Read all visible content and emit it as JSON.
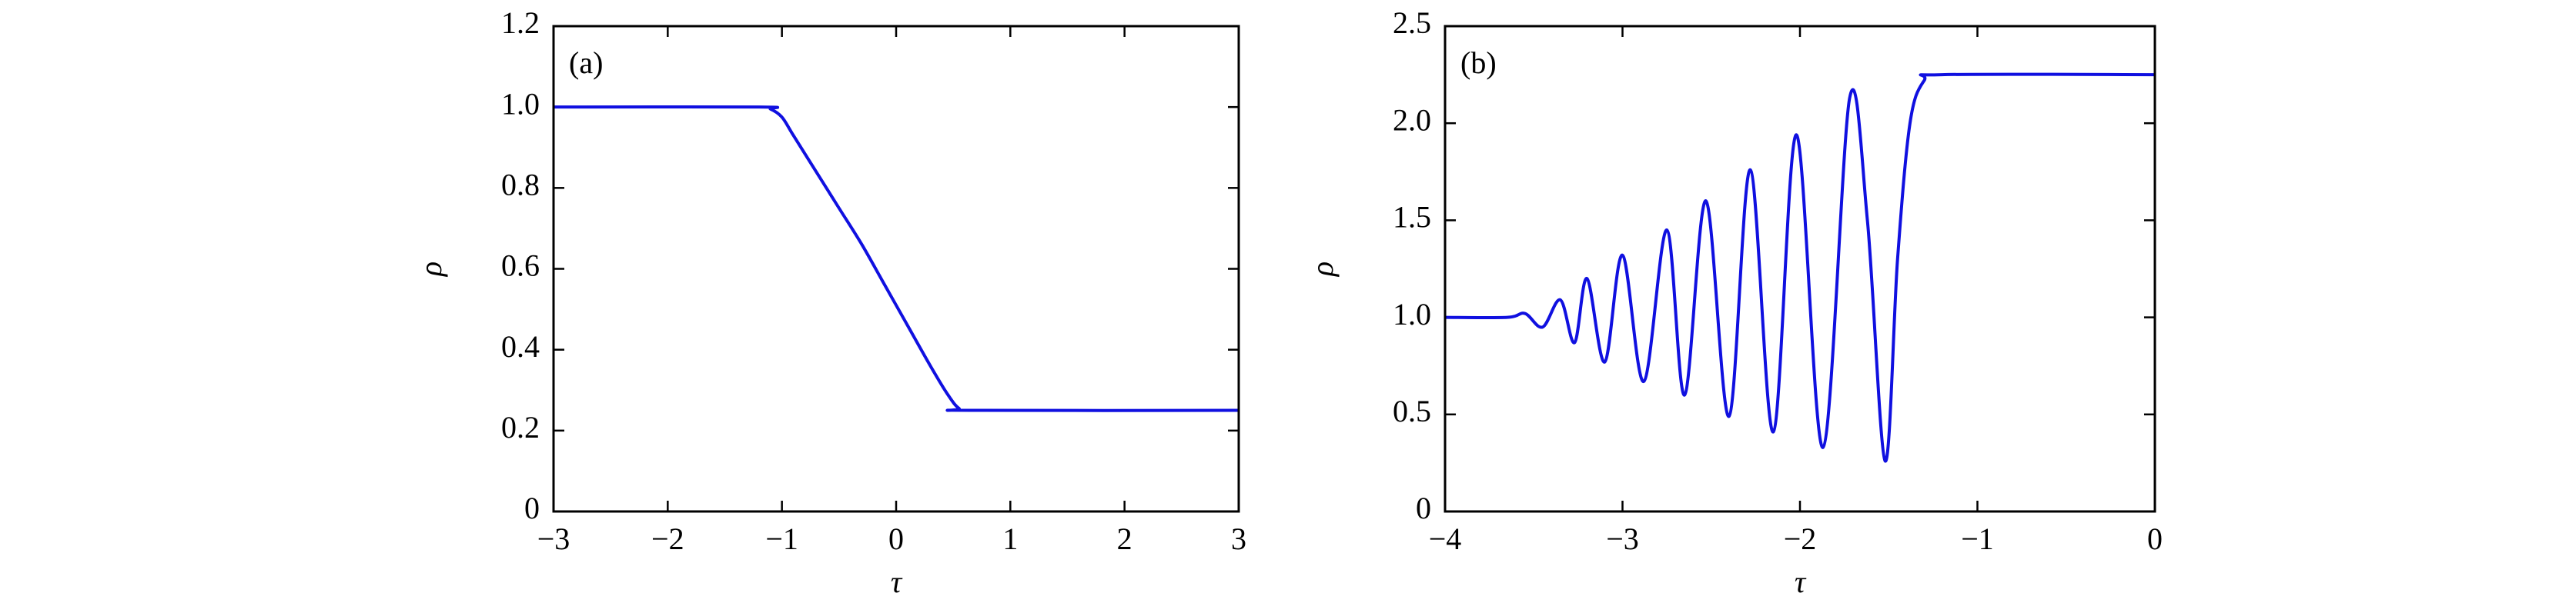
{
  "chart_data": [
    {
      "type": "line",
      "panel_label": "(a)",
      "x_label": "τ",
      "y_label": "ρ",
      "xlim": [
        -3,
        3
      ],
      "ylim": [
        0,
        1.2
      ],
      "xticks": [
        {
          "value": -3,
          "label": "−3"
        },
        {
          "value": -2,
          "label": "−2"
        },
        {
          "value": -1,
          "label": "−1"
        },
        0,
        1,
        2,
        3
      ],
      "yticks": [
        0,
        0.2,
        0.4,
        0.6,
        0.8,
        {
          "value": 1.0,
          "label": "1.0"
        },
        1.2
      ],
      "x": [
        -3,
        -1.2,
        -1.1,
        -1.0,
        -0.9,
        -0.7,
        -0.5,
        -0.3,
        -0.1,
        0.1,
        0.3,
        0.45,
        0.55,
        0.65,
        3
      ],
      "series": [
        {
          "color": "#1010e0",
          "values": [
            1,
            1,
            0.995,
            0.975,
            0.93,
            0.84,
            0.75,
            0.66,
            0.56,
            0.46,
            0.36,
            0.29,
            0.255,
            0.25,
            0.25
          ]
        }
      ]
    },
    {
      "type": "line",
      "panel_label": "(b)",
      "x_label": "τ",
      "y_label": "ρ",
      "xlim": [
        -4,
        0
      ],
      "ylim": [
        0,
        2.5
      ],
      "xticks": [
        {
          "value": -4,
          "label": "−4"
        },
        {
          "value": -3,
          "label": "−3"
        },
        {
          "value": -2,
          "label": "−2"
        },
        {
          "value": -1,
          "label": "−1"
        },
        0
      ],
      "yticks": [
        0,
        0.5,
        {
          "value": 1.0,
          "label": "1.0"
        },
        1.5,
        {
          "value": 2.0,
          "label": "2.0"
        },
        2.5
      ],
      "x": [
        -4,
        -3.65,
        -3.55,
        -3.45,
        -3.35,
        -3.27,
        -3.2,
        -3.1,
        -3.0,
        -2.88,
        -2.75,
        -2.65,
        -2.53,
        -2.4,
        -2.28,
        -2.15,
        -2.02,
        -1.87,
        -1.72,
        -1.62,
        -1.52,
        -1.45,
        -1.38,
        -1.3,
        -1.2,
        0
      ],
      "series": [
        {
          "color": "#1010e0",
          "values": [
            1,
            1,
            1.02,
            0.95,
            1.09,
            0.87,
            1.2,
            0.77,
            1.32,
            0.67,
            1.45,
            0.6,
            1.6,
            0.49,
            1.76,
            0.41,
            1.94,
            0.33,
            2.13,
            1.5,
            0.26,
            1.3,
            2.0,
            2.22,
            2.25,
            2.25
          ]
        }
      ]
    }
  ]
}
